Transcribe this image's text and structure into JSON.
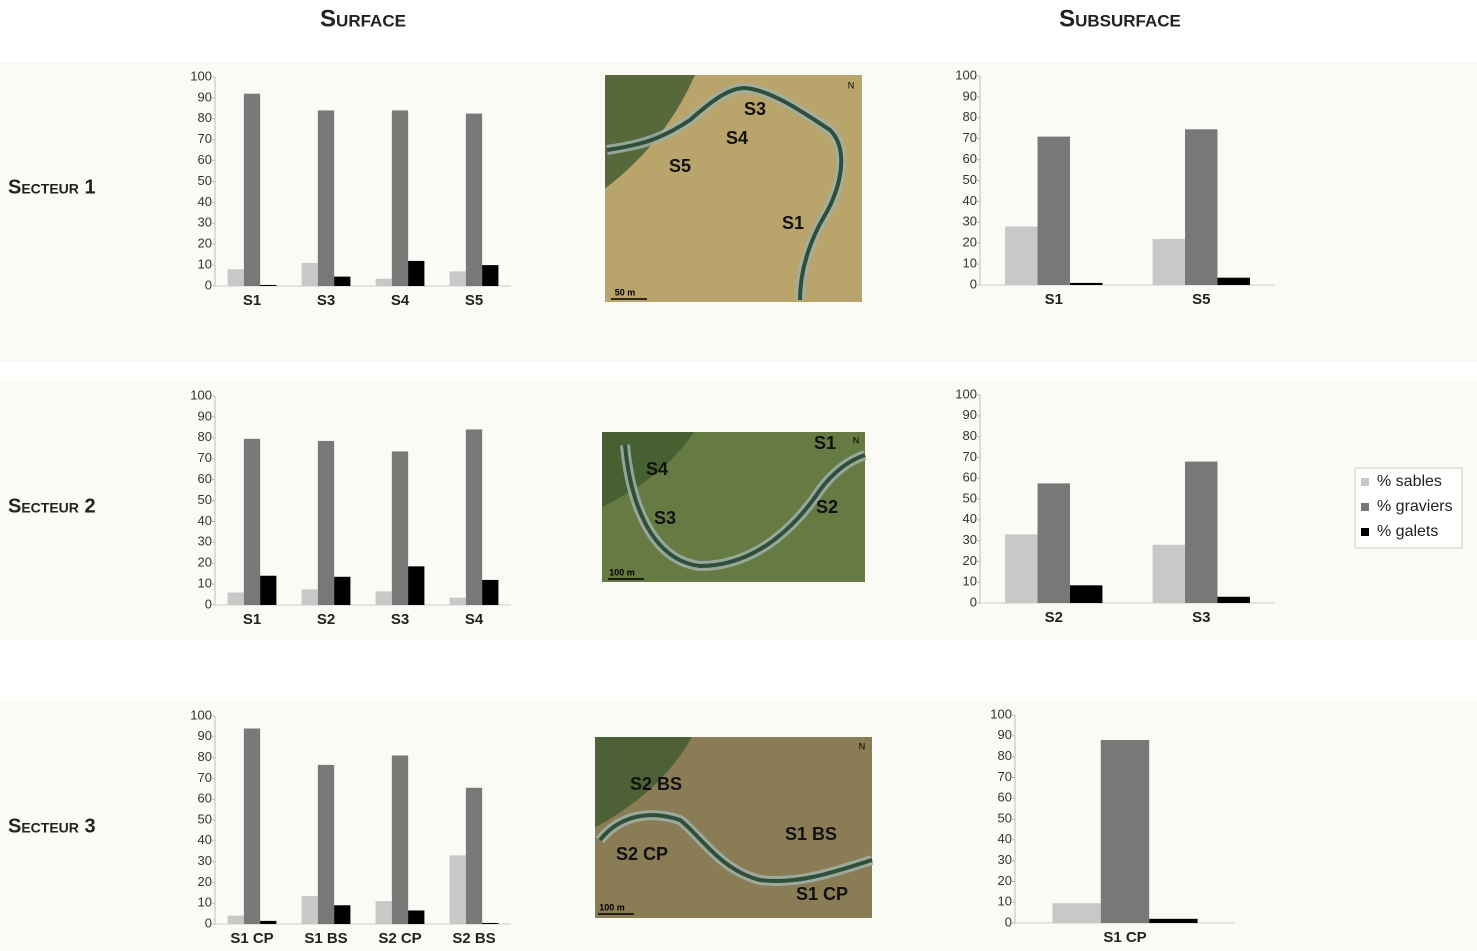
{
  "headers": {
    "surface": "Surface",
    "subsurface": "Subsurface"
  },
  "sectors": [
    "Secteur 1",
    "Secteur 2",
    "Secteur 3"
  ],
  "maps": [
    {
      "labels": [
        "S3",
        "S4",
        "S5",
        "S1"
      ],
      "north": "N",
      "scale": "50 m"
    },
    {
      "labels": [
        "S1",
        "S4",
        "S2",
        "S3"
      ],
      "north": "N",
      "scale": "100 m"
    },
    {
      "labels": [
        "S2 BS",
        "S2 CP",
        "S1 BS",
        "S1 CP"
      ],
      "north": "N",
      "scale": "100 m"
    }
  ],
  "chart_data": [
    {
      "type": "bar",
      "categories": [
        "S1",
        "S3",
        "S4",
        "S5"
      ],
      "series": [
        {
          "name": "% sables",
          "color": "#c8c8c8",
          "values": [
            8,
            11,
            3.5,
            7
          ]
        },
        {
          "name": "% graviers",
          "color": "#777877",
          "values": [
            92,
            84,
            84,
            82.5
          ]
        },
        {
          "name": "% galets",
          "color": "#000000",
          "values": [
            0.5,
            4.5,
            12,
            10
          ]
        }
      ],
      "ylim": [
        0,
        100
      ],
      "yticks": [
        0,
        10,
        20,
        30,
        40,
        50,
        60,
        70,
        80,
        90,
        100
      ]
    },
    {
      "type": "bar",
      "categories": [
        "S1",
        "S5"
      ],
      "series": [
        {
          "color": "#c8c8c8",
          "values": [
            28,
            22
          ]
        },
        {
          "color": "#777877",
          "values": [
            71,
            74.5
          ]
        },
        {
          "color": "#000000",
          "values": [
            1,
            3.5
          ]
        }
      ],
      "ylim": [
        0,
        100
      ],
      "yticks": [
        0,
        10,
        20,
        30,
        40,
        50,
        60,
        70,
        80,
        90,
        100
      ]
    },
    {
      "type": "bar",
      "categories": [
        "S1",
        "S2",
        "S3",
        "S4"
      ],
      "series": [
        {
          "color": "#c8c8c8",
          "values": [
            6,
            7.5,
            6.5,
            3.5
          ]
        },
        {
          "color": "#777877",
          "values": [
            79.5,
            78.5,
            73.5,
            84
          ]
        },
        {
          "color": "#000000",
          "values": [
            14,
            13.5,
            18.5,
            12
          ]
        }
      ],
      "ylim": [
        0,
        100
      ],
      "yticks": [
        0,
        10,
        20,
        30,
        40,
        50,
        60,
        70,
        80,
        90,
        100
      ]
    },
    {
      "type": "bar",
      "categories": [
        "S2",
        "S3"
      ],
      "series": [
        {
          "color": "#c8c8c8",
          "values": [
            33,
            28
          ]
        },
        {
          "color": "#777877",
          "values": [
            57.5,
            68
          ]
        },
        {
          "color": "#000000",
          "values": [
            8.5,
            3
          ]
        }
      ],
      "ylim": [
        0,
        100
      ],
      "yticks": [
        0,
        10,
        20,
        30,
        40,
        50,
        60,
        70,
        80,
        90,
        100
      ]
    },
    {
      "type": "bar",
      "categories": [
        "S1 CP",
        "S1 BS",
        "S2 CP",
        "S2 BS"
      ],
      "series": [
        {
          "color": "#c8c8c8",
          "values": [
            4,
            13.5,
            11,
            33
          ]
        },
        {
          "color": "#777877",
          "values": [
            94,
            76.5,
            81,
            65.5
          ]
        },
        {
          "color": "#000000",
          "values": [
            1.5,
            9,
            6.5,
            0.5
          ]
        }
      ],
      "ylim": [
        0,
        100
      ],
      "yticks": [
        0,
        10,
        20,
        30,
        40,
        50,
        60,
        70,
        80,
        90,
        100
      ]
    },
    {
      "type": "bar",
      "categories": [
        "S1 CP"
      ],
      "series": [
        {
          "color": "#c8c8c8",
          "values": [
            9.5
          ]
        },
        {
          "color": "#777877",
          "values": [
            88
          ]
        },
        {
          "color": "#000000",
          "values": [
            2
          ]
        }
      ],
      "ylim": [
        0,
        100
      ],
      "yticks": [
        0,
        10,
        20,
        30,
        40,
        50,
        60,
        70,
        80,
        90,
        100
      ]
    }
  ]
}
